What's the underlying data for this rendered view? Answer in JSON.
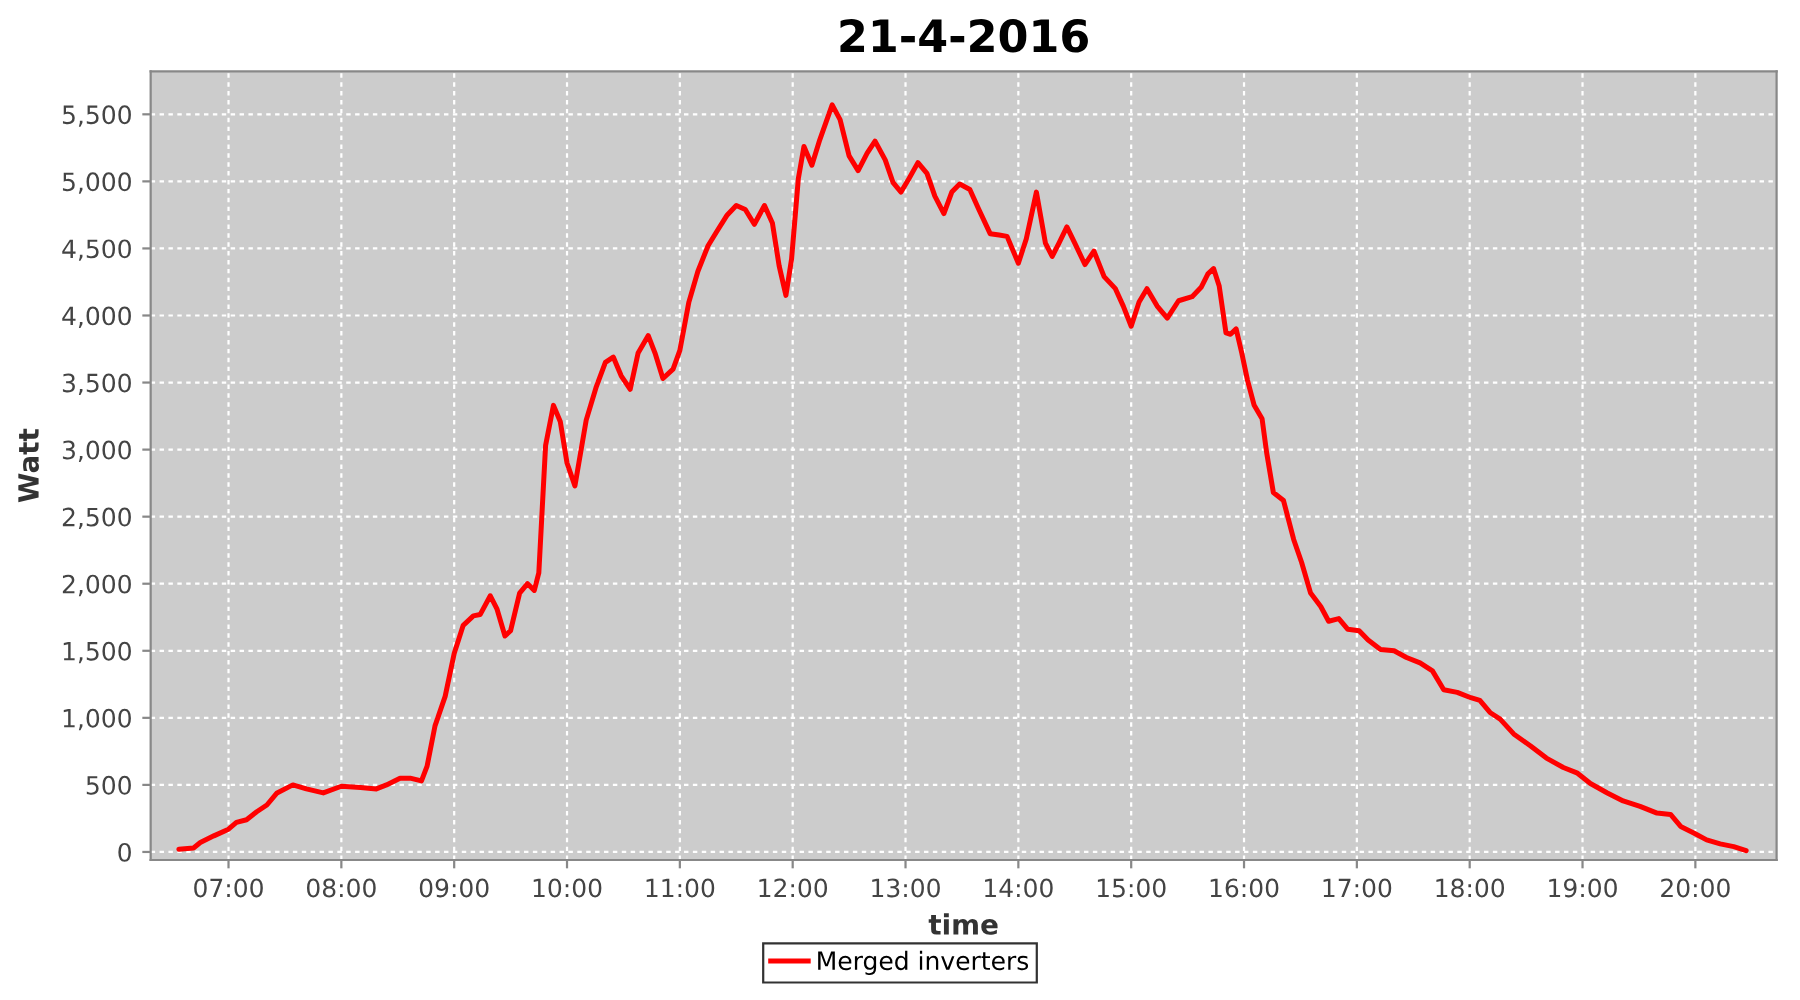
{
  "chart_data": {
    "type": "line",
    "title": "21-4-2016",
    "xlabel": "time",
    "ylabel": "Watt",
    "xlim": [
      6.31,
      20.72
    ],
    "ylim": [
      -60,
      5820
    ],
    "xticks": [
      {
        "value": 7,
        "label": "07:00"
      },
      {
        "value": 8,
        "label": "08:00"
      },
      {
        "value": 9,
        "label": "09:00"
      },
      {
        "value": 10,
        "label": "10:00"
      },
      {
        "value": 11,
        "label": "11:00"
      },
      {
        "value": 12,
        "label": "12:00"
      },
      {
        "value": 13,
        "label": "13:00"
      },
      {
        "value": 14,
        "label": "14:00"
      },
      {
        "value": 15,
        "label": "15:00"
      },
      {
        "value": 16,
        "label": "16:00"
      },
      {
        "value": 17,
        "label": "17:00"
      },
      {
        "value": 18,
        "label": "18:00"
      },
      {
        "value": 19,
        "label": "19:00"
      },
      {
        "value": 20,
        "label": "20:00"
      }
    ],
    "yticks": [
      0,
      500,
      {
        "value": 1000,
        "label": "1,000"
      },
      {
        "value": 1500,
        "label": "1,500"
      },
      {
        "value": 2000,
        "label": "2,000"
      },
      {
        "value": 2500,
        "label": "2,500"
      },
      {
        "value": 3000,
        "label": "3,000"
      },
      {
        "value": 3500,
        "label": "3,500"
      },
      {
        "value": 4000,
        "label": "4,000"
      },
      {
        "value": 4500,
        "label": "4,500"
      },
      {
        "value": 5000,
        "label": "5,000"
      },
      {
        "value": 5500,
        "label": "5,500"
      }
    ],
    "grid": true,
    "legend": "bottom",
    "line_style": "solid",
    "x": [
      6.56,
      6.69,
      6.75,
      6.87,
      7.0,
      7.07,
      7.16,
      7.25,
      7.34,
      7.43,
      7.57,
      7.69,
      7.84,
      8.0,
      8.17,
      8.31,
      8.4,
      8.52,
      8.61,
      8.71,
      8.76,
      8.83,
      8.92,
      9.0,
      9.08,
      9.17,
      9.23,
      9.32,
      9.38,
      9.45,
      9.5,
      9.58,
      9.65,
      9.71,
      9.75,
      9.81,
      9.88,
      9.94,
      10.0,
      10.07,
      10.17,
      10.26,
      10.34,
      10.41,
      10.48,
      10.56,
      10.63,
      10.72,
      10.78,
      10.85,
      10.94,
      11.0,
      11.08,
      11.16,
      11.25,
      11.33,
      11.42,
      11.5,
      11.58,
      11.66,
      11.75,
      11.82,
      11.88,
      11.94,
      11.99,
      12.05,
      12.1,
      12.17,
      12.24,
      12.35,
      12.42,
      12.5,
      12.58,
      12.66,
      12.73,
      12.82,
      12.89,
      12.96,
      13.03,
      13.11,
      13.19,
      13.26,
      13.34,
      13.41,
      13.48,
      13.57,
      13.65,
      13.75,
      13.83,
      13.9,
      14.0,
      14.07,
      14.16,
      14.24,
      14.3,
      14.36,
      14.43,
      14.5,
      14.59,
      14.67,
      14.76,
      14.86,
      14.93,
      15.0,
      15.07,
      15.14,
      15.23,
      15.32,
      15.42,
      15.54,
      15.62,
      15.68,
      15.73,
      15.78,
      15.84,
      15.88,
      15.93,
      15.98,
      16.03,
      16.09,
      16.16,
      16.2,
      16.26,
      16.35,
      16.44,
      16.51,
      16.59,
      16.68,
      16.75,
      16.84,
      16.92,
      17.02,
      17.1,
      17.21,
      17.33,
      17.44,
      17.56,
      17.67,
      17.77,
      17.89,
      18.01,
      18.09,
      18.18,
      18.27,
      18.39,
      18.54,
      18.68,
      18.83,
      18.95,
      19.07,
      19.22,
      19.36,
      19.51,
      19.66,
      19.78,
      19.87,
      19.99,
      20.1,
      20.22,
      20.34,
      20.45
    ],
    "series": [
      {
        "name": "Merged inverters",
        "color": "#ff0000",
        "values": [
          20,
          30,
          70,
          120,
          170,
          220,
          240,
          300,
          350,
          440,
          500,
          470,
          440,
          490,
          480,
          470,
          500,
          550,
          550,
          530,
          640,
          940,
          1160,
          1480,
          1690,
          1760,
          1770,
          1910,
          1810,
          1610,
          1650,
          1930,
          2000,
          1950,
          2080,
          3030,
          3330,
          3210,
          2900,
          2730,
          3220,
          3470,
          3650,
          3690,
          3550,
          3450,
          3720,
          3850,
          3720,
          3530,
          3600,
          3740,
          4100,
          4330,
          4520,
          4630,
          4750,
          4820,
          4790,
          4680,
          4820,
          4690,
          4370,
          4150,
          4420,
          5020,
          5260,
          5120,
          5310,
          5570,
          5460,
          5190,
          5080,
          5210,
          5300,
          5160,
          4990,
          4920,
          5020,
          5140,
          5060,
          4890,
          4760,
          4920,
          4980,
          4940,
          4790,
          4610,
          4600,
          4590,
          4390,
          4570,
          4920,
          4540,
          4440,
          4540,
          4660,
          4540,
          4380,
          4480,
          4290,
          4200,
          4070,
          3920,
          4100,
          4200,
          4070,
          3980,
          4110,
          4140,
          4210,
          4310,
          4350,
          4220,
          3870,
          3860,
          3900,
          3720,
          3520,
          3330,
          3230,
          2980,
          2680,
          2620,
          2330,
          2160,
          1930,
          1830,
          1720,
          1740,
          1660,
          1650,
          1580,
          1510,
          1500,
          1450,
          1410,
          1350,
          1210,
          1190,
          1150,
          1130,
          1040,
          990,
          880,
          790,
          700,
          630,
          590,
          510,
          440,
          380,
          340,
          290,
          280,
          190,
          140,
          90,
          60,
          40,
          10
        ]
      }
    ]
  }
}
